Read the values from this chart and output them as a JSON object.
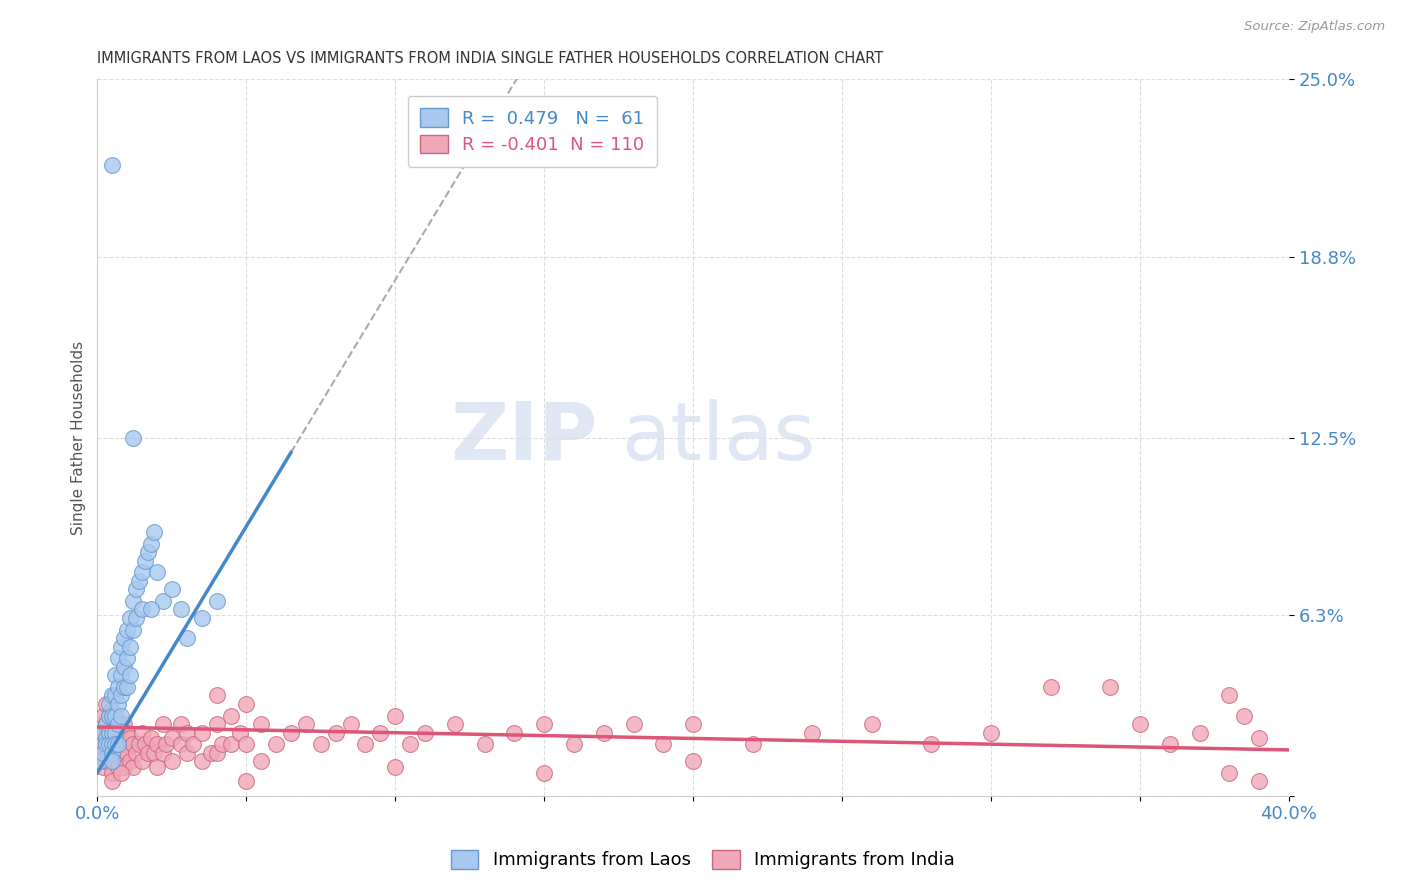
{
  "title": "IMMIGRANTS FROM LAOS VS IMMIGRANTS FROM INDIA SINGLE FATHER HOUSEHOLDS CORRELATION CHART",
  "source": "Source: ZipAtlas.com",
  "ylabel": "Single Father Households",
  "xmin": 0.0,
  "xmax": 0.4,
  "ymin": 0.0,
  "ymax": 0.25,
  "yticks": [
    0.0,
    0.063,
    0.125,
    0.188,
    0.25
  ],
  "ytick_labels": [
    "",
    "6.3%",
    "12.5%",
    "18.8%",
    "25.0%"
  ],
  "xticks": [
    0.0,
    0.05,
    0.1,
    0.15,
    0.2,
    0.25,
    0.3,
    0.35,
    0.4
  ],
  "xtick_labels": [
    "0.0%",
    "",
    "",
    "",
    "",
    "",
    "",
    "",
    "40.0%"
  ],
  "laos_color": "#a8c8f0",
  "india_color": "#f0a8b8",
  "laos_edge_color": "#6699cc",
  "india_edge_color": "#cc6680",
  "line_laos_color": "#4488cc",
  "line_india_color": "#dd5577",
  "line_dashed_color": "#aaaaaa",
  "legend_laos_label": "Immigrants from Laos",
  "legend_india_label": "Immigrants from India",
  "R_laos": 0.479,
  "N_laos": 61,
  "R_india": -0.401,
  "N_india": 110,
  "title_color": "#333333",
  "axis_color": "#4488cc",
  "india_axis_color": "#dd5577",
  "background_color": "#ffffff",
  "grid_color": "#dddddd",
  "watermark_zip": "ZIP",
  "watermark_atlas": "atlas",
  "laos_points": [
    [
      0.001,
      0.012
    ],
    [
      0.001,
      0.018
    ],
    [
      0.002,
      0.015
    ],
    [
      0.002,
      0.022
    ],
    [
      0.003,
      0.02
    ],
    [
      0.003,
      0.025
    ],
    [
      0.003,
      0.018
    ],
    [
      0.004,
      0.028
    ],
    [
      0.004,
      0.022
    ],
    [
      0.004,
      0.018
    ],
    [
      0.004,
      0.032
    ],
    [
      0.005,
      0.035
    ],
    [
      0.005,
      0.028
    ],
    [
      0.005,
      0.022
    ],
    [
      0.005,
      0.018
    ],
    [
      0.005,
      0.015
    ],
    [
      0.005,
      0.012
    ],
    [
      0.006,
      0.042
    ],
    [
      0.006,
      0.035
    ],
    [
      0.006,
      0.028
    ],
    [
      0.006,
      0.022
    ],
    [
      0.006,
      0.018
    ],
    [
      0.007,
      0.048
    ],
    [
      0.007,
      0.038
    ],
    [
      0.007,
      0.032
    ],
    [
      0.007,
      0.025
    ],
    [
      0.007,
      0.018
    ],
    [
      0.008,
      0.052
    ],
    [
      0.008,
      0.042
    ],
    [
      0.008,
      0.035
    ],
    [
      0.008,
      0.028
    ],
    [
      0.009,
      0.055
    ],
    [
      0.009,
      0.045
    ],
    [
      0.009,
      0.038
    ],
    [
      0.01,
      0.058
    ],
    [
      0.01,
      0.048
    ],
    [
      0.01,
      0.038
    ],
    [
      0.011,
      0.062
    ],
    [
      0.011,
      0.052
    ],
    [
      0.011,
      0.042
    ],
    [
      0.012,
      0.068
    ],
    [
      0.012,
      0.058
    ],
    [
      0.013,
      0.072
    ],
    [
      0.013,
      0.062
    ],
    [
      0.014,
      0.075
    ],
    [
      0.015,
      0.078
    ],
    [
      0.015,
      0.065
    ],
    [
      0.016,
      0.082
    ],
    [
      0.017,
      0.085
    ],
    [
      0.018,
      0.088
    ],
    [
      0.019,
      0.092
    ],
    [
      0.02,
      0.078
    ],
    [
      0.022,
      0.068
    ],
    [
      0.025,
      0.072
    ],
    [
      0.028,
      0.065
    ],
    [
      0.03,
      0.055
    ],
    [
      0.035,
      0.062
    ],
    [
      0.04,
      0.068
    ],
    [
      0.012,
      0.125
    ],
    [
      0.005,
      0.22
    ],
    [
      0.018,
      0.065
    ]
  ],
  "india_points": [
    [
      0.001,
      0.025
    ],
    [
      0.001,
      0.018
    ],
    [
      0.001,
      0.012
    ],
    [
      0.002,
      0.028
    ],
    [
      0.002,
      0.022
    ],
    [
      0.002,
      0.015
    ],
    [
      0.002,
      0.01
    ],
    [
      0.003,
      0.032
    ],
    [
      0.003,
      0.025
    ],
    [
      0.003,
      0.018
    ],
    [
      0.003,
      0.012
    ],
    [
      0.004,
      0.028
    ],
    [
      0.004,
      0.022
    ],
    [
      0.004,
      0.015
    ],
    [
      0.005,
      0.03
    ],
    [
      0.005,
      0.022
    ],
    [
      0.005,
      0.015
    ],
    [
      0.005,
      0.008
    ],
    [
      0.006,
      0.028
    ],
    [
      0.006,
      0.02
    ],
    [
      0.006,
      0.012
    ],
    [
      0.007,
      0.025
    ],
    [
      0.007,
      0.018
    ],
    [
      0.007,
      0.01
    ],
    [
      0.008,
      0.022
    ],
    [
      0.008,
      0.015
    ],
    [
      0.009,
      0.025
    ],
    [
      0.009,
      0.018
    ],
    [
      0.009,
      0.01
    ],
    [
      0.01,
      0.022
    ],
    [
      0.01,
      0.015
    ],
    [
      0.011,
      0.02
    ],
    [
      0.011,
      0.012
    ],
    [
      0.012,
      0.018
    ],
    [
      0.012,
      0.01
    ],
    [
      0.013,
      0.015
    ],
    [
      0.014,
      0.018
    ],
    [
      0.015,
      0.022
    ],
    [
      0.015,
      0.012
    ],
    [
      0.016,
      0.018
    ],
    [
      0.017,
      0.015
    ],
    [
      0.018,
      0.02
    ],
    [
      0.019,
      0.015
    ],
    [
      0.02,
      0.018
    ],
    [
      0.02,
      0.01
    ],
    [
      0.022,
      0.015
    ],
    [
      0.022,
      0.025
    ],
    [
      0.023,
      0.018
    ],
    [
      0.025,
      0.02
    ],
    [
      0.025,
      0.012
    ],
    [
      0.028,
      0.018
    ],
    [
      0.028,
      0.025
    ],
    [
      0.03,
      0.022
    ],
    [
      0.03,
      0.015
    ],
    [
      0.032,
      0.018
    ],
    [
      0.035,
      0.022
    ],
    [
      0.035,
      0.012
    ],
    [
      0.038,
      0.015
    ],
    [
      0.04,
      0.035
    ],
    [
      0.04,
      0.025
    ],
    [
      0.04,
      0.015
    ],
    [
      0.042,
      0.018
    ],
    [
      0.045,
      0.028
    ],
    [
      0.045,
      0.018
    ],
    [
      0.048,
      0.022
    ],
    [
      0.05,
      0.032
    ],
    [
      0.05,
      0.018
    ],
    [
      0.055,
      0.025
    ],
    [
      0.055,
      0.012
    ],
    [
      0.06,
      0.018
    ],
    [
      0.065,
      0.022
    ],
    [
      0.07,
      0.025
    ],
    [
      0.075,
      0.018
    ],
    [
      0.08,
      0.022
    ],
    [
      0.085,
      0.025
    ],
    [
      0.09,
      0.018
    ],
    [
      0.095,
      0.022
    ],
    [
      0.1,
      0.028
    ],
    [
      0.105,
      0.018
    ],
    [
      0.11,
      0.022
    ],
    [
      0.12,
      0.025
    ],
    [
      0.13,
      0.018
    ],
    [
      0.14,
      0.022
    ],
    [
      0.15,
      0.025
    ],
    [
      0.16,
      0.018
    ],
    [
      0.17,
      0.022
    ],
    [
      0.18,
      0.025
    ],
    [
      0.19,
      0.018
    ],
    [
      0.2,
      0.025
    ],
    [
      0.22,
      0.018
    ],
    [
      0.24,
      0.022
    ],
    [
      0.26,
      0.025
    ],
    [
      0.28,
      0.018
    ],
    [
      0.3,
      0.022
    ],
    [
      0.32,
      0.038
    ],
    [
      0.34,
      0.038
    ],
    [
      0.35,
      0.025
    ],
    [
      0.36,
      0.018
    ],
    [
      0.37,
      0.022
    ],
    [
      0.38,
      0.035
    ],
    [
      0.385,
      0.028
    ],
    [
      0.39,
      0.02
    ],
    [
      0.005,
      0.005
    ],
    [
      0.008,
      0.008
    ],
    [
      0.05,
      0.005
    ],
    [
      0.1,
      0.01
    ],
    [
      0.15,
      0.008
    ],
    [
      0.2,
      0.012
    ],
    [
      0.38,
      0.008
    ],
    [
      0.39,
      0.005
    ]
  ],
  "laos_line_x_solid_end": 0.065,
  "laos_line_x_start": 0.0,
  "laos_line_y_start": 0.008,
  "laos_line_slope": 1.72,
  "india_line_y_start": 0.024,
  "india_line_y_end": 0.016
}
